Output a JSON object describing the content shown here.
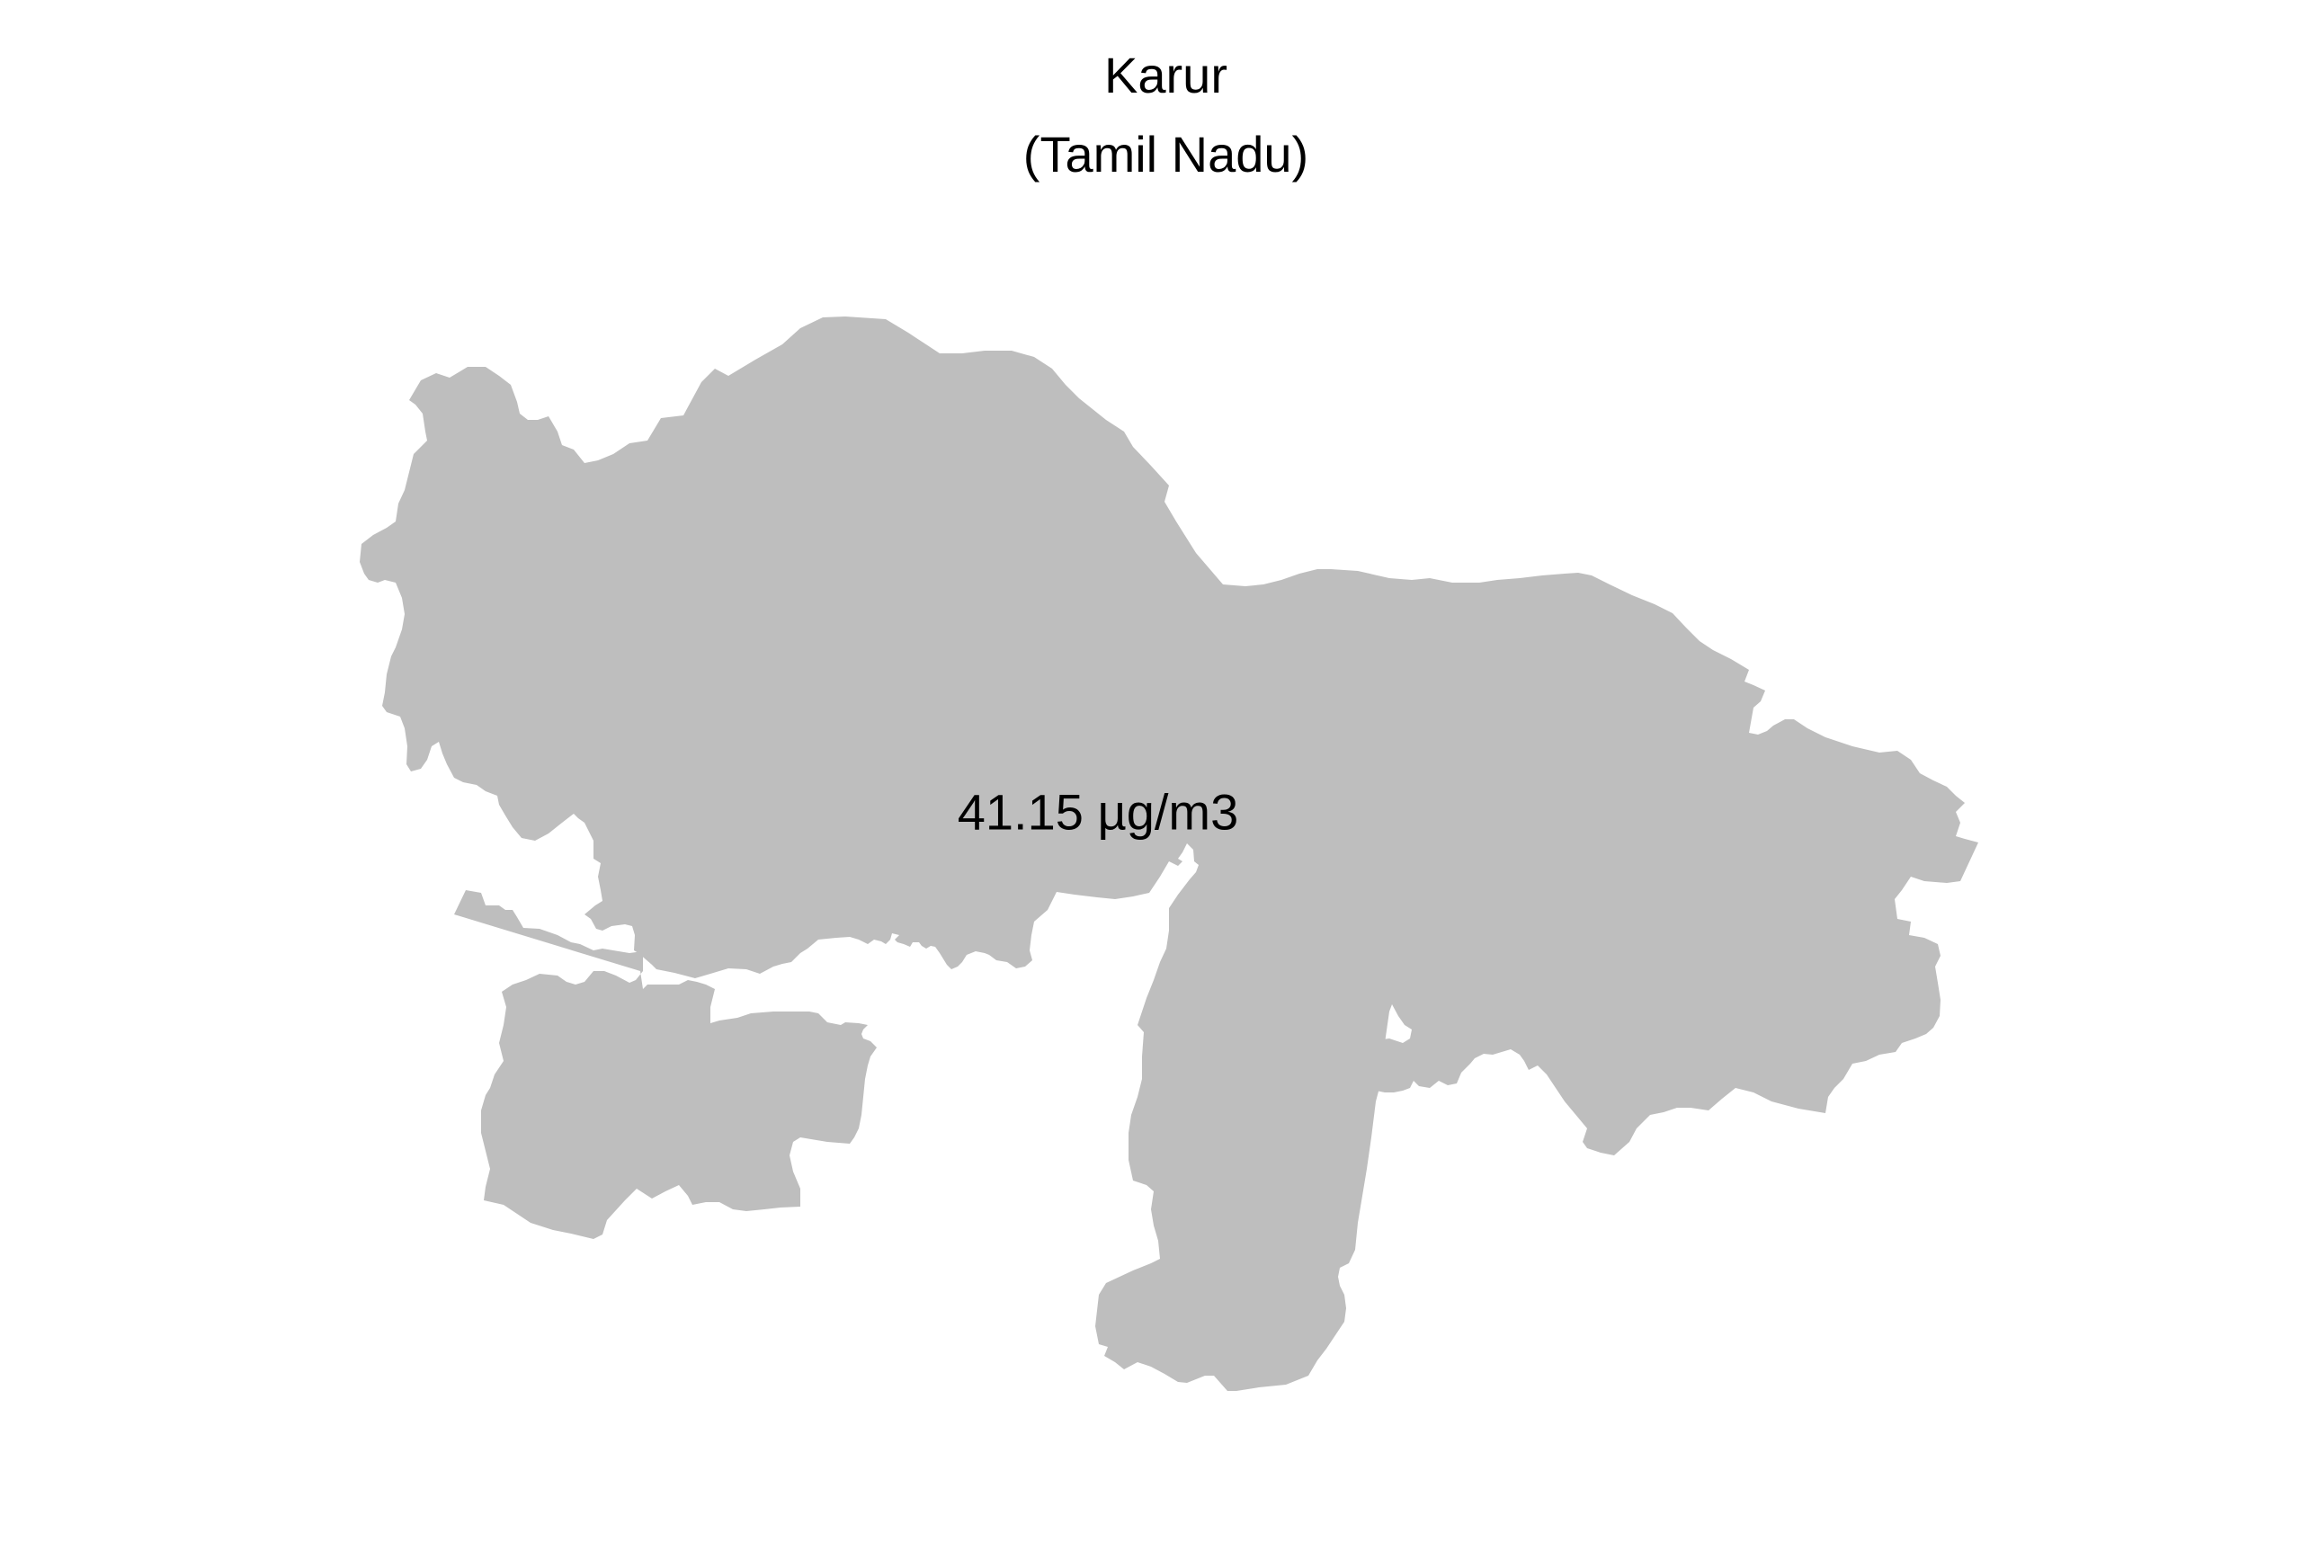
{
  "title": "Karur",
  "subtitle": "(Tamil Nadu)",
  "region": {
    "name": "Karur",
    "state": "Tamil Nadu",
    "value_label": "41.15 µg/m3",
    "value": 41.15,
    "unit": "µg/m3",
    "fill_color": "#bebebe"
  },
  "background_color": "#ffffff"
}
